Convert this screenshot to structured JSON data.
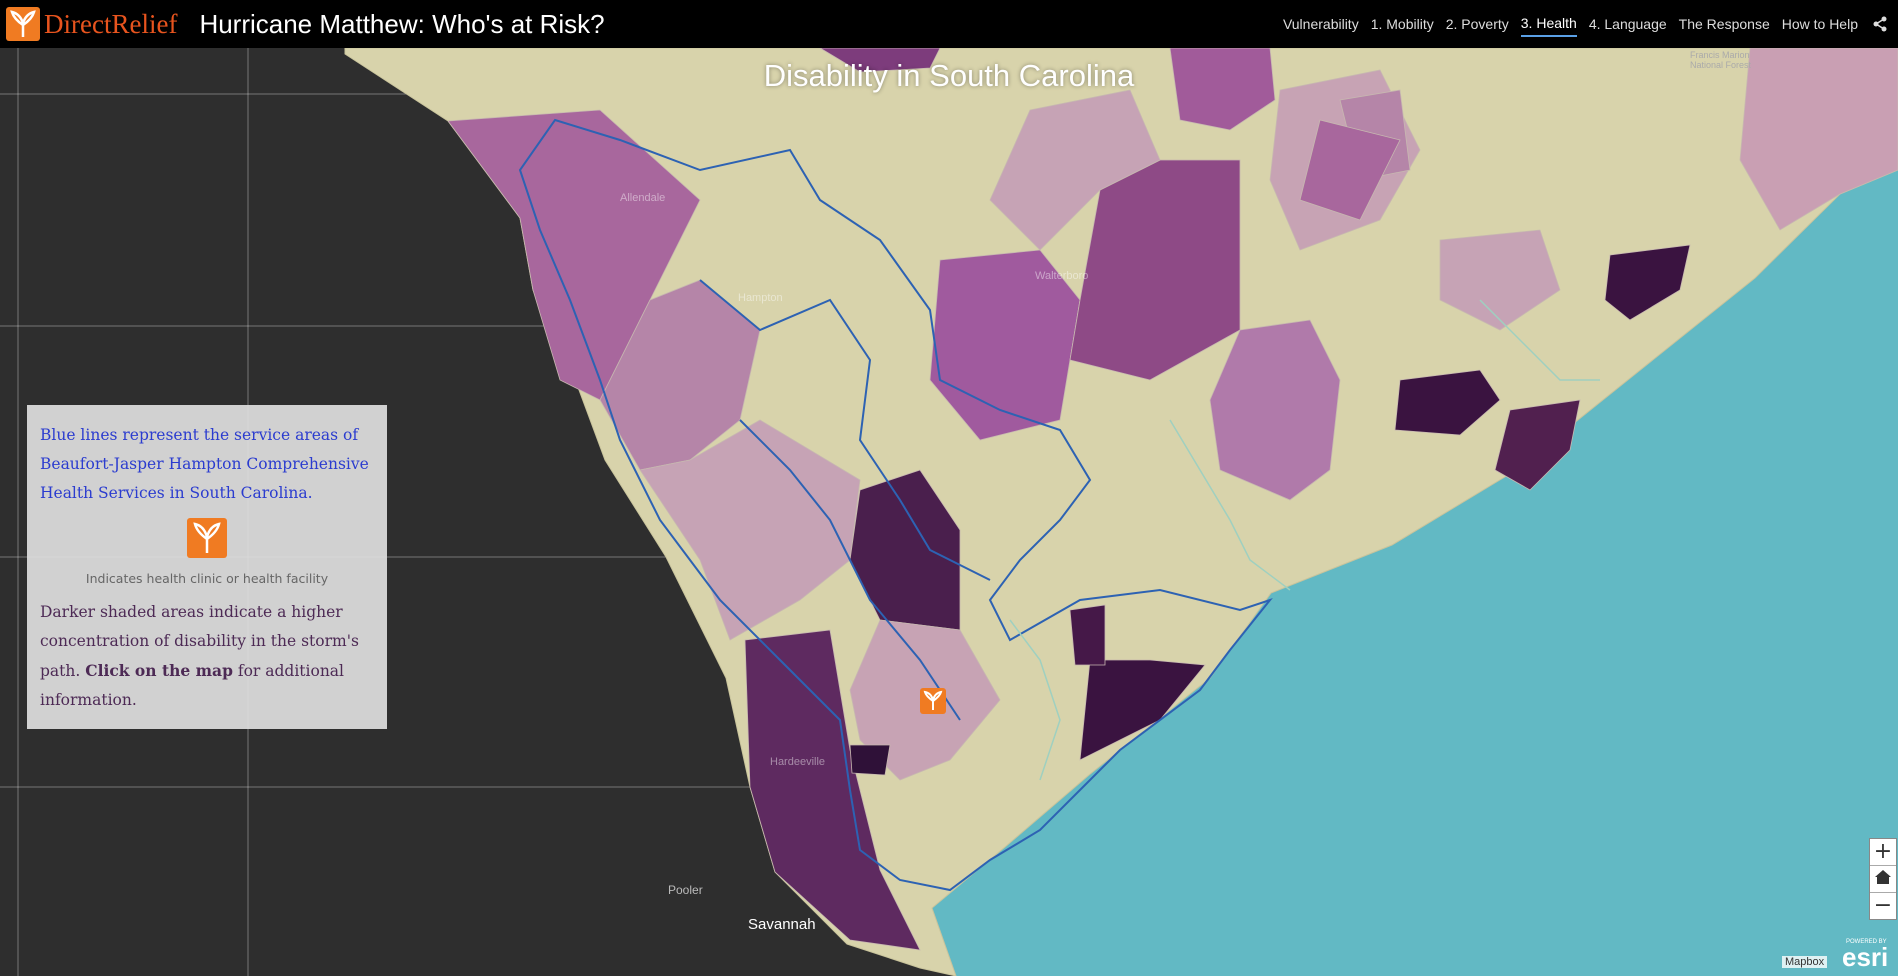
{
  "header": {
    "logo": "DirectRelief",
    "title": "Hurricane Matthew: Who's at Risk?",
    "nav": [
      "Vulnerability",
      "1. Mobility",
      "2. Poverty",
      "3. Health",
      "4. Language",
      "The Response",
      "How to Help"
    ]
  },
  "map": {
    "title": "Disability in South Carolina",
    "labels": [
      "Savannah",
      "Pooler",
      "Hardeeville",
      "Walterboro",
      "Allendale",
      "Hampton",
      "Francis Marion National Forest"
    ]
  },
  "info_panel": {
    "service_text": "Blue lines represent the service areas of Beaufort-Jasper Hampton Comprehensive Health Services in South Carolina.",
    "icon_caption": "Indicates health clinic or health facility",
    "shading_text_start": "Darker shaded areas indicate a higher concentration of disability in the storm's path.",
    "shading_text_bold": "Click on the map",
    "shading_text_end": "for additional information."
  },
  "zoom": {
    "in": "+",
    "out": "−"
  },
  "attribution": {
    "mapbox": "Mapbox",
    "esri_powered": "POWERED BY",
    "esri": "esri"
  }
}
